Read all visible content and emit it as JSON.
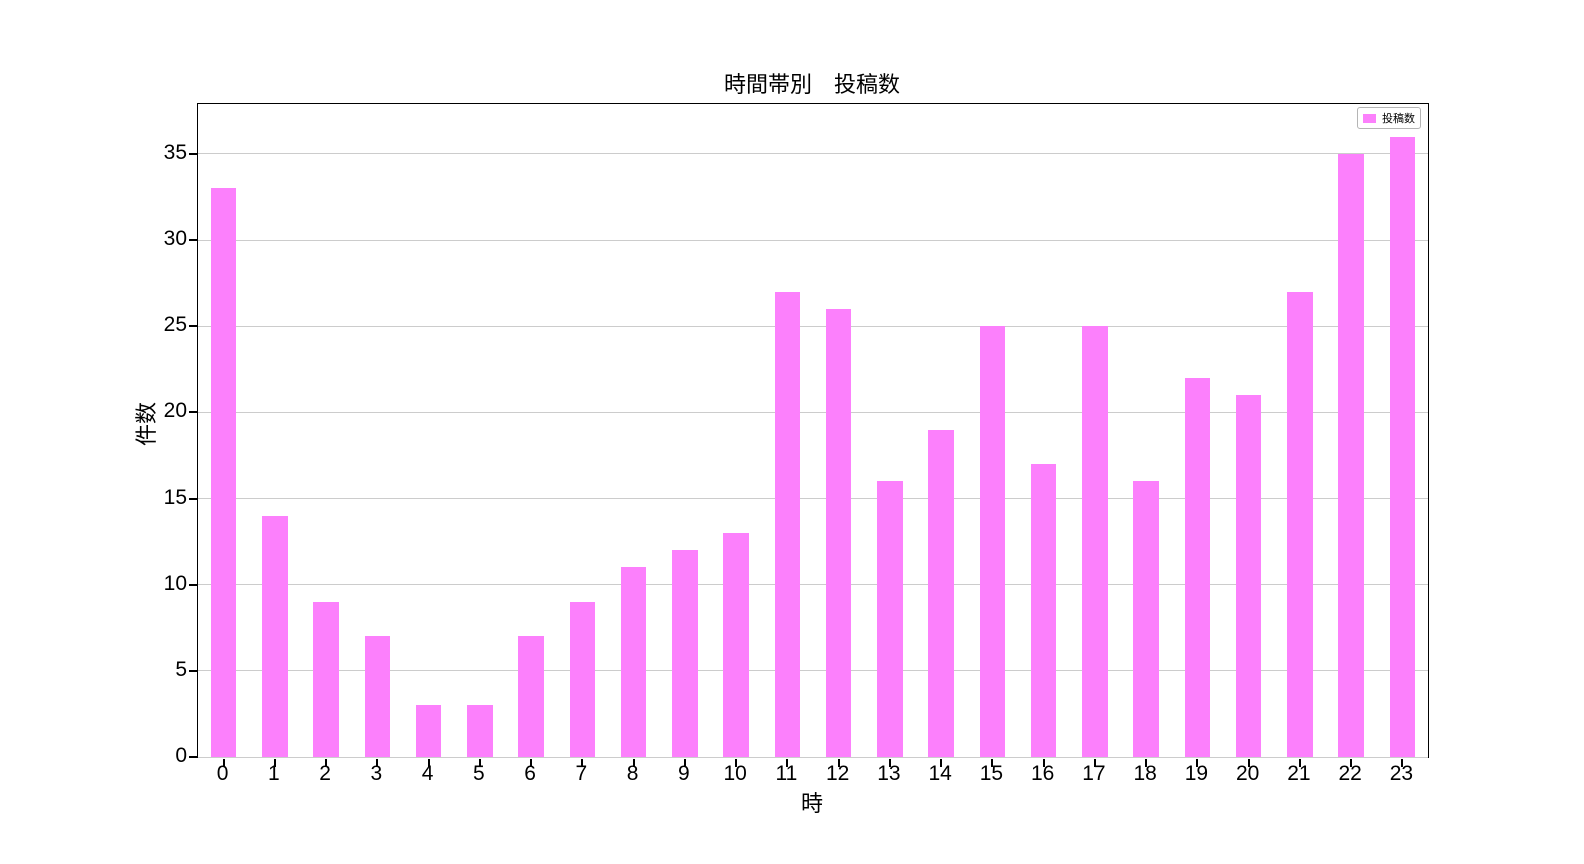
{
  "chart_data": {
    "type": "bar",
    "title": "時間帯別　投稿数",
    "xlabel": "時",
    "ylabel": "件数",
    "categories": [
      "0",
      "1",
      "2",
      "3",
      "4",
      "5",
      "6",
      "7",
      "8",
      "9",
      "10",
      "11",
      "12",
      "13",
      "14",
      "15",
      "16",
      "17",
      "18",
      "19",
      "20",
      "21",
      "22",
      "23"
    ],
    "series": [
      {
        "name": "投稿数",
        "values": [
          33,
          14,
          9,
          7,
          3,
          3,
          7,
          9,
          11,
          12,
          13,
          27,
          26,
          16,
          19,
          25,
          17,
          25,
          16,
          22,
          21,
          27,
          35,
          36
        ]
      }
    ],
    "yticks": [
      0,
      5,
      10,
      15,
      20,
      25,
      30,
      35
    ],
    "ylim": [
      0,
      37.9
    ],
    "xlim": [
      -0.5,
      23.5
    ],
    "grid": "horizontal",
    "legend_position": "upper right",
    "colors": {
      "bar": "#fc80fc",
      "grid": "#cccccc",
      "axis": "#000000",
      "legend_border": "#b5b5b5",
      "background": "#ffffff"
    }
  }
}
